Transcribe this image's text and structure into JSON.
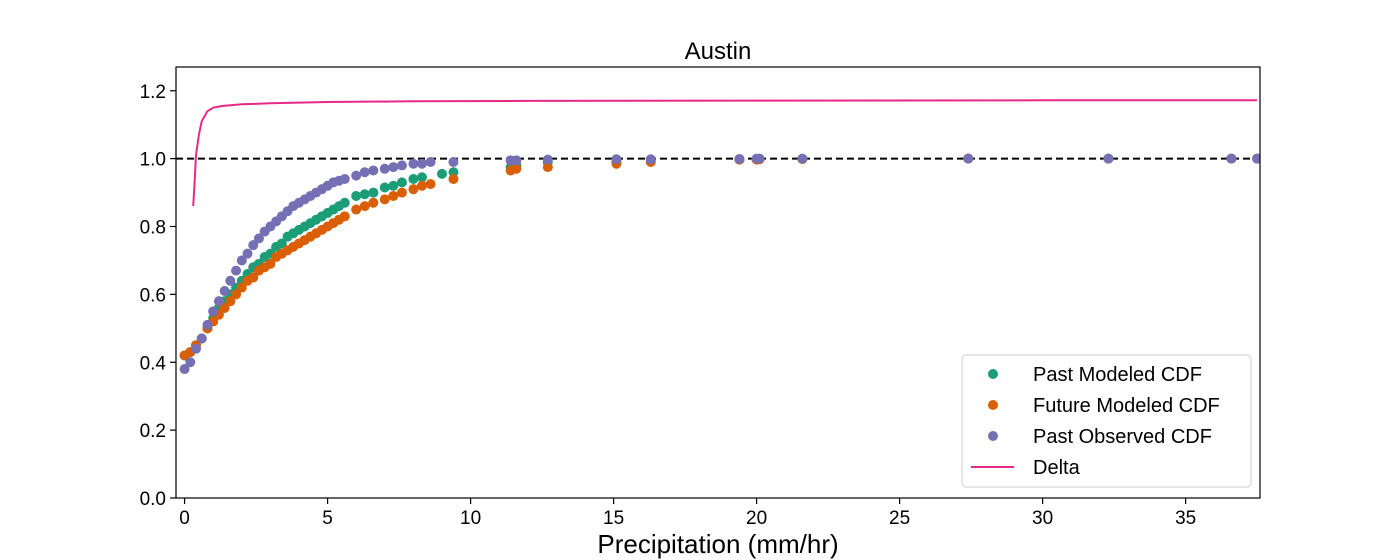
{
  "chart_data": {
    "type": "scatter",
    "title": "Austin",
    "xlabel": "Precipitation (mm/hr)",
    "ylabel": "",
    "xlim": [
      -0.3,
      37.6
    ],
    "ylim": [
      0.0,
      1.27
    ],
    "xticks": [
      0,
      5,
      10,
      15,
      20,
      25,
      30,
      35
    ],
    "yticks": [
      0.0,
      0.2,
      0.4,
      0.6,
      0.8,
      1.0,
      1.2
    ],
    "xtick_labels": [
      "0",
      "5",
      "10",
      "15",
      "20",
      "25",
      "30",
      "35"
    ],
    "ytick_labels": [
      "0.0",
      "0.2",
      "0.4",
      "0.6",
      "0.8",
      "1.0",
      "1.2"
    ],
    "grid": false,
    "legend_position": "lower-right",
    "reference_line": {
      "y": 1.0,
      "style": "dashed",
      "color": "#000000"
    },
    "series": [
      {
        "name": "Past Modeled CDF",
        "kind": "scatter",
        "color": "#1b9e77",
        "points": [
          [
            0.0,
            0.42
          ],
          [
            0.2,
            0.43
          ],
          [
            0.4,
            0.45
          ],
          [
            0.6,
            0.47
          ],
          [
            0.8,
            0.5
          ],
          [
            1.0,
            0.53
          ],
          [
            1.2,
            0.56
          ],
          [
            1.4,
            0.58
          ],
          [
            1.6,
            0.6
          ],
          [
            1.8,
            0.62
          ],
          [
            2.0,
            0.64
          ],
          [
            2.2,
            0.66
          ],
          [
            2.4,
            0.68
          ],
          [
            2.6,
            0.69
          ],
          [
            2.8,
            0.71
          ],
          [
            3.0,
            0.72
          ],
          [
            3.2,
            0.74
          ],
          [
            3.4,
            0.75
          ],
          [
            3.6,
            0.77
          ],
          [
            3.8,
            0.78
          ],
          [
            4.0,
            0.79
          ],
          [
            4.2,
            0.8
          ],
          [
            4.4,
            0.81
          ],
          [
            4.6,
            0.82
          ],
          [
            4.8,
            0.83
          ],
          [
            5.0,
            0.84
          ],
          [
            5.2,
            0.85
          ],
          [
            5.4,
            0.86
          ],
          [
            5.6,
            0.87
          ],
          [
            6.0,
            0.89
          ],
          [
            6.3,
            0.895
          ],
          [
            6.6,
            0.9
          ],
          [
            7.0,
            0.915
          ],
          [
            7.3,
            0.92
          ],
          [
            7.6,
            0.93
          ],
          [
            8.0,
            0.94
          ],
          [
            8.3,
            0.945
          ],
          [
            9.0,
            0.955
          ],
          [
            9.4,
            0.96
          ],
          [
            11.4,
            0.975
          ],
          [
            11.6,
            0.98
          ],
          [
            12.7,
            0.99
          ],
          [
            15.1,
            0.99
          ],
          [
            16.3,
            0.995
          ],
          [
            19.4,
            0.997
          ],
          [
            20.0,
            0.998
          ],
          [
            20.1,
            0.999
          ],
          [
            21.6,
            0.999
          ],
          [
            27.4,
            1.0
          ],
          [
            32.3,
            1.0
          ],
          [
            36.6,
            1.0
          ],
          [
            37.5,
            1.0
          ]
        ]
      },
      {
        "name": "Future Modeled CDF",
        "kind": "scatter",
        "color": "#d95f02",
        "points": [
          [
            0.0,
            0.42
          ],
          [
            0.2,
            0.43
          ],
          [
            0.4,
            0.45
          ],
          [
            0.6,
            0.47
          ],
          [
            0.8,
            0.5
          ],
          [
            1.0,
            0.52
          ],
          [
            1.2,
            0.54
          ],
          [
            1.4,
            0.56
          ],
          [
            1.6,
            0.58
          ],
          [
            1.8,
            0.6
          ],
          [
            2.0,
            0.62
          ],
          [
            2.2,
            0.64
          ],
          [
            2.4,
            0.65
          ],
          [
            2.6,
            0.67
          ],
          [
            2.8,
            0.68
          ],
          [
            3.0,
            0.69
          ],
          [
            3.2,
            0.71
          ],
          [
            3.4,
            0.72
          ],
          [
            3.6,
            0.73
          ],
          [
            3.8,
            0.74
          ],
          [
            4.0,
            0.75
          ],
          [
            4.2,
            0.76
          ],
          [
            4.4,
            0.77
          ],
          [
            4.6,
            0.78
          ],
          [
            4.8,
            0.79
          ],
          [
            5.0,
            0.8
          ],
          [
            5.2,
            0.81
          ],
          [
            5.4,
            0.82
          ],
          [
            5.6,
            0.83
          ],
          [
            6.0,
            0.85
          ],
          [
            6.3,
            0.86
          ],
          [
            6.6,
            0.87
          ],
          [
            7.0,
            0.88
          ],
          [
            7.3,
            0.89
          ],
          [
            7.6,
            0.9
          ],
          [
            8.0,
            0.91
          ],
          [
            8.3,
            0.92
          ],
          [
            8.6,
            0.925
          ],
          [
            9.4,
            0.94
          ],
          [
            11.4,
            0.965
          ],
          [
            11.6,
            0.97
          ],
          [
            12.7,
            0.975
          ],
          [
            15.1,
            0.985
          ],
          [
            16.3,
            0.99
          ],
          [
            19.4,
            0.997
          ],
          [
            20.0,
            0.997
          ],
          [
            20.1,
            0.998
          ],
          [
            21.6,
            0.999
          ],
          [
            27.4,
            1.0
          ],
          [
            32.3,
            1.0
          ],
          [
            36.6,
            1.0
          ],
          [
            37.5,
            1.0
          ]
        ]
      },
      {
        "name": "Past Observed CDF",
        "kind": "scatter",
        "color": "#7570b3",
        "points": [
          [
            0.0,
            0.38
          ],
          [
            0.2,
            0.4
          ],
          [
            0.4,
            0.44
          ],
          [
            0.6,
            0.47
          ],
          [
            0.8,
            0.51
          ],
          [
            1.0,
            0.55
          ],
          [
            1.2,
            0.58
          ],
          [
            1.4,
            0.61
          ],
          [
            1.6,
            0.64
          ],
          [
            1.8,
            0.67
          ],
          [
            2.0,
            0.7
          ],
          [
            2.2,
            0.72
          ],
          [
            2.4,
            0.745
          ],
          [
            2.6,
            0.765
          ],
          [
            2.8,
            0.785
          ],
          [
            3.0,
            0.8
          ],
          [
            3.2,
            0.815
          ],
          [
            3.4,
            0.83
          ],
          [
            3.6,
            0.845
          ],
          [
            3.8,
            0.86
          ],
          [
            4.0,
            0.87
          ],
          [
            4.2,
            0.88
          ],
          [
            4.4,
            0.89
          ],
          [
            4.6,
            0.9
          ],
          [
            4.8,
            0.91
          ],
          [
            5.0,
            0.92
          ],
          [
            5.2,
            0.93
          ],
          [
            5.4,
            0.935
          ],
          [
            5.6,
            0.94
          ],
          [
            6.0,
            0.95
          ],
          [
            6.3,
            0.96
          ],
          [
            6.6,
            0.965
          ],
          [
            7.0,
            0.97
          ],
          [
            7.3,
            0.975
          ],
          [
            7.6,
            0.98
          ],
          [
            8.0,
            0.985
          ],
          [
            8.3,
            0.985
          ],
          [
            8.6,
            0.99
          ],
          [
            9.4,
            0.99
          ],
          [
            11.4,
            0.995
          ],
          [
            11.6,
            0.995
          ],
          [
            12.7,
            0.997
          ],
          [
            15.1,
            0.998
          ],
          [
            16.3,
            0.998
          ],
          [
            19.4,
            0.999
          ],
          [
            20.0,
            1.0
          ],
          [
            20.1,
            1.0
          ],
          [
            21.6,
            1.0
          ],
          [
            27.4,
            1.0
          ],
          [
            32.3,
            1.0
          ],
          [
            36.6,
            1.0
          ],
          [
            37.5,
            1.0
          ]
        ]
      },
      {
        "name": "Delta",
        "kind": "line",
        "color": "#e7298a",
        "points": [
          [
            0.3,
            0.86
          ],
          [
            0.35,
            0.93
          ],
          [
            0.4,
            1.01
          ],
          [
            0.5,
            1.07
          ],
          [
            0.6,
            1.11
          ],
          [
            0.8,
            1.14
          ],
          [
            1.0,
            1.15
          ],
          [
            1.3,
            1.155
          ],
          [
            2.0,
            1.16
          ],
          [
            3.0,
            1.163
          ],
          [
            5.0,
            1.167
          ],
          [
            8.0,
            1.169
          ],
          [
            12.0,
            1.17
          ],
          [
            20.0,
            1.171
          ],
          [
            30.0,
            1.172
          ],
          [
            37.5,
            1.172
          ]
        ]
      }
    ]
  }
}
